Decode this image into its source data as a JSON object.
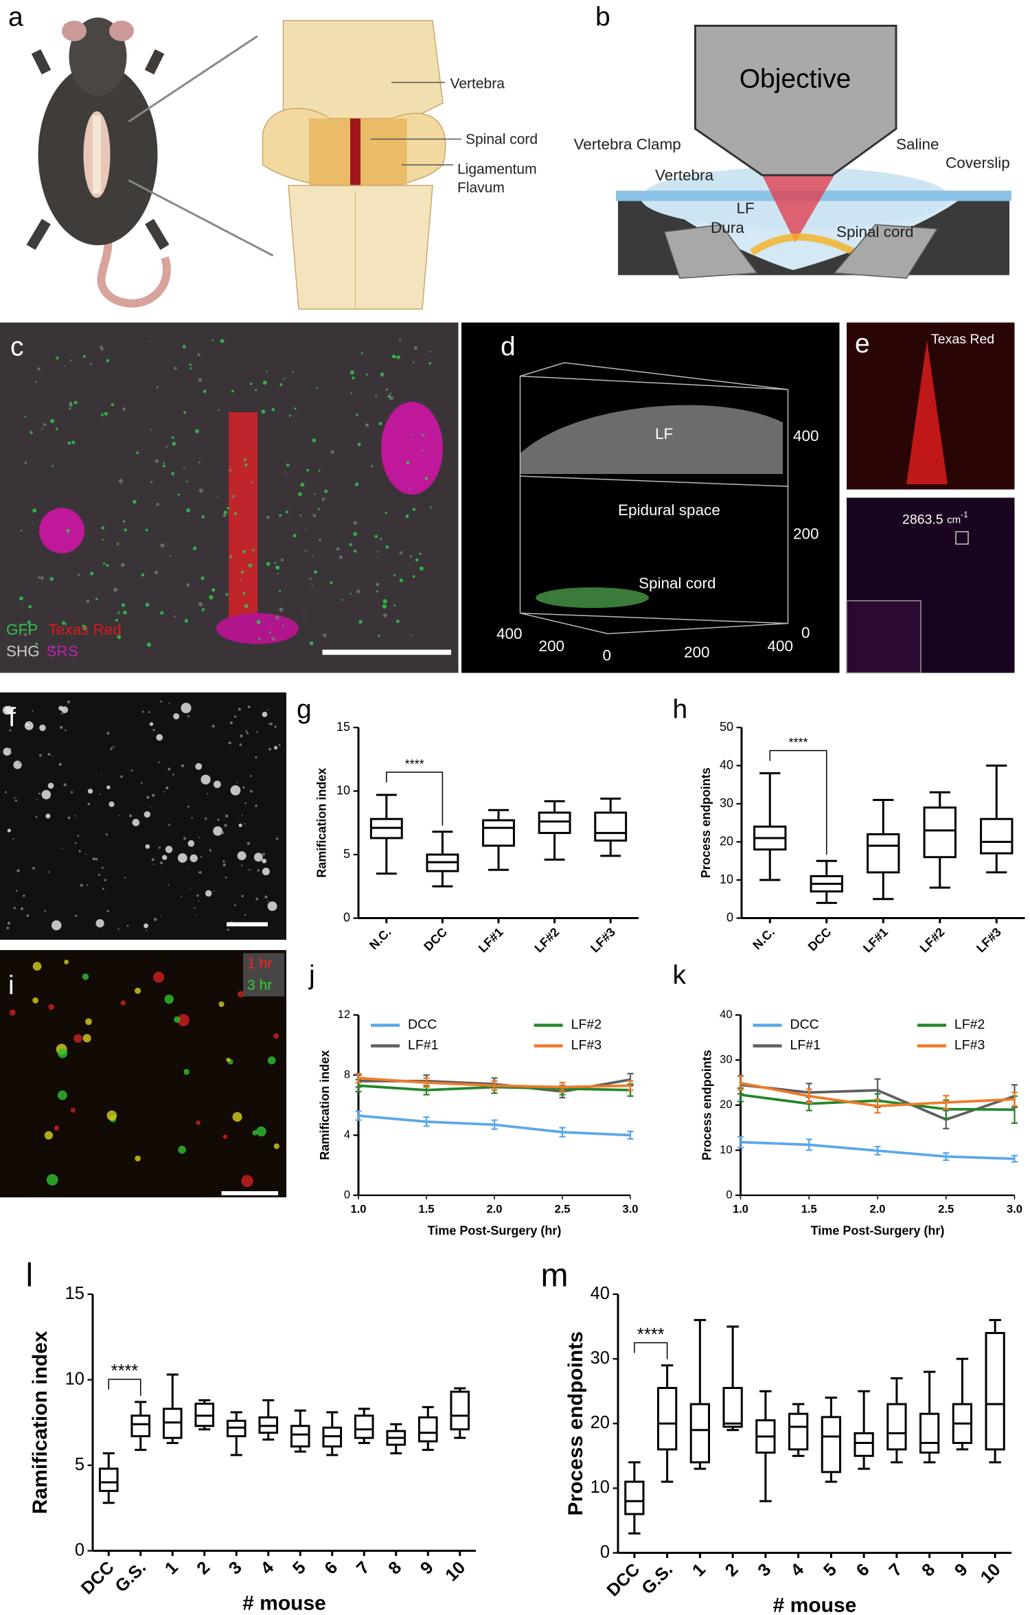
{
  "figure": {
    "panel_labels": [
      "a",
      "b",
      "c",
      "d",
      "e",
      "f",
      "g",
      "h",
      "i",
      "j",
      "k",
      "l",
      "m"
    ],
    "a": {
      "vertebra": "Vertebra",
      "spinal_cord": "Spinal cord",
      "ligamentum": "Ligamentum",
      "flavum": "Flavum"
    },
    "b": {
      "objective": "Objective",
      "clamp": "Vertebra Clamp",
      "saline": "Saline",
      "coverslip": "Coverslip",
      "vertebra": "Vertebra",
      "lf": "LF",
      "dura": "Dura",
      "spinal_cord": "Spinal cord"
    },
    "c": {
      "gfp": "GFP",
      "texas_red": "Texas Red",
      "shg": "SHG",
      "srs": "SRS"
    },
    "d": {
      "lf": "LF",
      "epidural": "Epidural space",
      "spinal_cord": "Spinal cord",
      "z_ticks": [
        400,
        200,
        0
      ],
      "x_ticks": [
        400,
        200,
        0,
        200,
        400
      ]
    },
    "e": {
      "texas_red": "Texas Red",
      "wavenumber": "2863.5",
      "unit": "cm",
      "exponent": "-1"
    },
    "i": {
      "t1": "1 hr",
      "t2": "3 hr"
    }
  },
  "chart_data": [
    {
      "type": "box",
      "y_label": "Ramification index",
      "categories": [
        "N.C.",
        "DCC",
        "LF#1",
        "LF#2",
        "LF#3"
      ],
      "boxes": [
        {
          "min": 3.5,
          "q1": 6.3,
          "median": 7.1,
          "q3": 7.8,
          "max": 9.7
        },
        {
          "min": 2.5,
          "q1": 3.7,
          "median": 4.4,
          "q3": 5.0,
          "max": 6.8
        },
        {
          "min": 3.8,
          "q1": 5.7,
          "median": 7.1,
          "q3": 7.7,
          "max": 8.5
        },
        {
          "min": 4.6,
          "q1": 6.7,
          "median": 7.6,
          "q3": 8.3,
          "max": 9.2
        },
        {
          "min": 4.9,
          "q1": 6.1,
          "median": 6.7,
          "q3": 8.3,
          "max": 9.4
        }
      ],
      "significance": "****",
      "ylim": [
        0,
        15
      ],
      "yticks": [
        0,
        5,
        10,
        15
      ]
    },
    {
      "type": "box",
      "y_label": "Process endpoints",
      "categories": [
        "N.C.",
        "DCC",
        "LF#1",
        "LF#2",
        "LF#3"
      ],
      "boxes": [
        {
          "min": 10,
          "q1": 18,
          "median": 21,
          "q3": 24,
          "max": 38
        },
        {
          "min": 4,
          "q1": 7,
          "median": 9,
          "q3": 11,
          "max": 15
        },
        {
          "min": 5,
          "q1": 12,
          "median": 19,
          "q3": 22,
          "max": 31
        },
        {
          "min": 8,
          "q1": 16,
          "median": 23,
          "q3": 29,
          "max": 33
        },
        {
          "min": 12,
          "q1": 17,
          "median": 20,
          "q3": 26,
          "max": 40
        }
      ],
      "significance": "****",
      "ylim": [
        0,
        50
      ],
      "yticks": [
        0,
        10,
        20,
        30,
        40,
        50
      ]
    },
    {
      "type": "line",
      "y_label": "Ramification index",
      "x_label": "Time Post-Surgery (hr)",
      "x": [
        1,
        1.5,
        2,
        2.5,
        3
      ],
      "series": [
        {
          "name": "DCC",
          "color": "#5aa7ea",
          "values": [
            5.3,
            4.9,
            4.7,
            4.2,
            4.0
          ],
          "errors": [
            0.3,
            0.3,
            0.3,
            0.3,
            0.25
          ]
        },
        {
          "name": "LF#1",
          "color": "#5f5f5f",
          "values": [
            7.6,
            7.6,
            7.4,
            6.9,
            7.7
          ],
          "errors": [
            0.4,
            0.4,
            0.4,
            0.4,
            0.4
          ]
        },
        {
          "name": "LF#2",
          "color": "#23862a",
          "values": [
            7.3,
            7.0,
            7.2,
            7.1,
            7.0
          ],
          "errors": [
            0.4,
            0.3,
            0.4,
            0.4,
            0.4
          ]
        },
        {
          "name": "LF#3",
          "color": "#f07a28",
          "values": [
            7.8,
            7.5,
            7.3,
            7.2,
            7.3
          ],
          "errors": [
            0.3,
            0.3,
            0.3,
            0.3,
            0.3
          ]
        }
      ],
      "xlim": [
        1,
        3
      ],
      "xticks": [
        {
          "value": 1,
          "label": "1.0"
        },
        {
          "value": 1.5,
          "label": "1.5"
        },
        {
          "value": 2,
          "label": "2.0"
        },
        {
          "value": 2.5,
          "label": "2.5"
        },
        {
          "value": 3,
          "label": "3.0"
        }
      ],
      "ylim": [
        0,
        12
      ],
      "yticks": [
        0,
        4,
        8,
        12
      ]
    },
    {
      "type": "line",
      "y_label": "Process endpoints",
      "x_label": "Time Post-Surgery (hr)",
      "x": [
        1,
        1.5,
        2,
        2.5,
        3
      ],
      "series": [
        {
          "name": "DCC",
          "color": "#5aa7ea",
          "values": [
            11.8,
            11.2,
            9.9,
            8.6,
            8.1
          ],
          "errors": [
            1.2,
            1.2,
            0.9,
            0.8,
            0.7
          ]
        },
        {
          "name": "LF#1",
          "color": "#5f5f5f",
          "values": [
            24.5,
            22.8,
            23.3,
            16.8,
            22.0
          ],
          "errors": [
            2,
            2,
            2.5,
            2,
            2.5
          ]
        },
        {
          "name": "LF#2",
          "color": "#23862a",
          "values": [
            22.3,
            20.3,
            21.0,
            19.1,
            19.0
          ],
          "errors": [
            1.5,
            1.5,
            1.5,
            2,
            3
          ]
        },
        {
          "name": "LF#3",
          "color": "#f07a28",
          "values": [
            24.9,
            22.0,
            19.8,
            20.6,
            21.3
          ],
          "errors": [
            1.5,
            1.5,
            1.5,
            1.5,
            1.5
          ]
        }
      ],
      "xlim": [
        1,
        3
      ],
      "xticks": [
        {
          "value": 1,
          "label": "1.0"
        },
        {
          "value": 1.5,
          "label": "1.5"
        },
        {
          "value": 2,
          "label": "2.0"
        },
        {
          "value": 2.5,
          "label": "2.5"
        },
        {
          "value": 3,
          "label": "3.0"
        }
      ],
      "ylim": [
        0,
        40
      ],
      "yticks": [
        0,
        10,
        20,
        30,
        40
      ]
    },
    {
      "type": "box",
      "y_label": "Ramification index",
      "x_label": "# mouse",
      "categories": [
        "DCC",
        "G.S.",
        "1",
        "2",
        "3",
        "4",
        "5",
        "6",
        "7",
        "8",
        "9",
        "10"
      ],
      "boxes": [
        {
          "min": 2.8,
          "q1": 3.5,
          "median": 4.0,
          "q3": 4.8,
          "max": 5.7
        },
        {
          "min": 5.9,
          "q1": 6.7,
          "median": 7.4,
          "q3": 7.9,
          "max": 8.7
        },
        {
          "min": 6.3,
          "q1": 6.6,
          "median": 7.5,
          "q3": 8.3,
          "max": 10.3
        },
        {
          "min": 7.1,
          "q1": 7.3,
          "median": 7.9,
          "q3": 8.6,
          "max": 8.8
        },
        {
          "min": 5.6,
          "q1": 6.7,
          "median": 7.2,
          "q3": 7.6,
          "max": 8.1
        },
        {
          "min": 6.5,
          "q1": 6.9,
          "median": 7.3,
          "q3": 7.8,
          "max": 8.8
        },
        {
          "min": 5.8,
          "q1": 6.1,
          "median": 6.8,
          "q3": 7.3,
          "max": 8.2
        },
        {
          "min": 5.6,
          "q1": 6.1,
          "median": 6.7,
          "q3": 7.2,
          "max": 8.1
        },
        {
          "min": 6.3,
          "q1": 6.6,
          "median": 7.1,
          "q3": 7.9,
          "max": 8.3
        },
        {
          "min": 5.7,
          "q1": 6.2,
          "median": 6.6,
          "q3": 7.0,
          "max": 7.4
        },
        {
          "min": 5.9,
          "q1": 6.4,
          "median": 6.9,
          "q3": 7.8,
          "max": 8.4
        },
        {
          "min": 6.6,
          "q1": 7.1,
          "median": 7.9,
          "q3": 9.3,
          "max": 9.5
        }
      ],
      "significance": "****",
      "ylim": [
        0,
        15
      ],
      "yticks": [
        0,
        5,
        10,
        15
      ]
    },
    {
      "type": "box",
      "y_label": "Process endpoints",
      "x_label": "# mouse",
      "categories": [
        "DCC",
        "G.S.",
        "1",
        "2",
        "3",
        "4",
        "5",
        "6",
        "7",
        "8",
        "9",
        "10"
      ],
      "boxes": [
        {
          "min": 3,
          "q1": 6,
          "median": 8,
          "q3": 11,
          "max": 14
        },
        {
          "min": 11,
          "q1": 16,
          "median": 20,
          "q3": 25.5,
          "max": 29
        },
        {
          "min": 13,
          "q1": 14,
          "median": 19,
          "q3": 23,
          "max": 36
        },
        {
          "min": 19,
          "q1": 19.5,
          "median": 20,
          "q3": 25.5,
          "max": 35
        },
        {
          "min": 8,
          "q1": 15.5,
          "median": 18,
          "q3": 20.5,
          "max": 25
        },
        {
          "min": 15,
          "q1": 16,
          "median": 19.5,
          "q3": 21.5,
          "max": 23
        },
        {
          "min": 11,
          "q1": 12.5,
          "median": 18,
          "q3": 21,
          "max": 24
        },
        {
          "min": 13,
          "q1": 15,
          "median": 17,
          "q3": 18.5,
          "max": 25
        },
        {
          "min": 14,
          "q1": 16,
          "median": 18.5,
          "q3": 23,
          "max": 27
        },
        {
          "min": 14,
          "q1": 15.5,
          "median": 17,
          "q3": 21.5,
          "max": 28
        },
        {
          "min": 16,
          "q1": 17,
          "median": 20,
          "q3": 23,
          "max": 30
        },
        {
          "min": 14,
          "q1": 16,
          "median": 23,
          "q3": 34,
          "max": 36
        }
      ],
      "significance": "****",
      "ylim": [
        0,
        40
      ],
      "yticks": [
        0,
        10,
        20,
        30,
        40
      ]
    }
  ]
}
